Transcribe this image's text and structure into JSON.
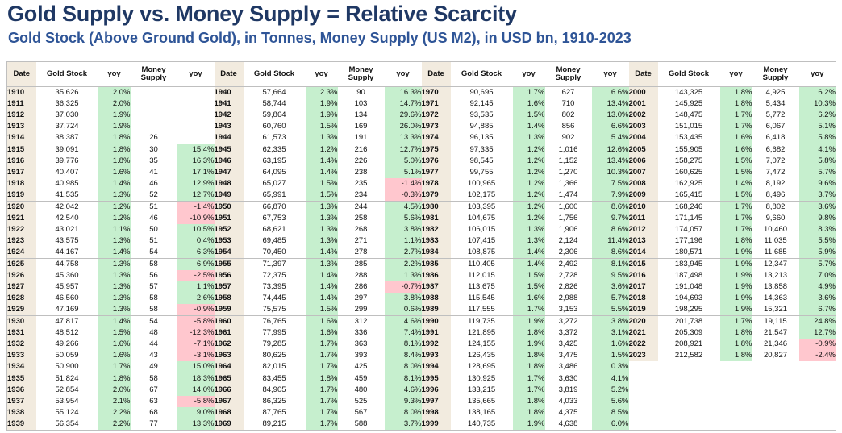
{
  "header": {
    "title": "Gold Supply vs. Money Supply = Relative Scarcity",
    "subtitle": "Gold Stock (Above Ground Gold), in Tonnes, Money Supply (US M2), in USD bn, 1910-2023"
  },
  "columns": [
    "Date",
    "Gold Stock",
    "yoy",
    "Money Supply",
    "yoy"
  ],
  "colors": {
    "date_bg": "#f2ebdf",
    "positive_bg": "#c6efce",
    "negative_bg": "#ffc7ce",
    "title": "#1f3864",
    "subtitle": "#2f5597"
  },
  "blocks": [
    {
      "rows": [
        [
          "1910",
          "35,626",
          "2.0%",
          "",
          ""
        ],
        [
          "1911",
          "36,325",
          "2.0%",
          "",
          ""
        ],
        [
          "1912",
          "37,030",
          "1.9%",
          "",
          ""
        ],
        [
          "1913",
          "37,724",
          "1.9%",
          "",
          ""
        ],
        [
          "1914",
          "38,387",
          "1.8%",
          "26",
          ""
        ],
        [
          "1915",
          "39,091",
          "1.8%",
          "30",
          "15.4%"
        ],
        [
          "1916",
          "39,776",
          "1.8%",
          "35",
          "16.3%"
        ],
        [
          "1917",
          "40,407",
          "1.6%",
          "41",
          "17.1%"
        ],
        [
          "1918",
          "40,985",
          "1.4%",
          "46",
          "12.9%"
        ],
        [
          "1919",
          "41,535",
          "1.3%",
          "52",
          "12.7%"
        ],
        [
          "1920",
          "42,042",
          "1.2%",
          "51",
          "-1.4%"
        ],
        [
          "1921",
          "42,540",
          "1.2%",
          "46",
          "-10.9%"
        ],
        [
          "1922",
          "43,021",
          "1.1%",
          "50",
          "10.5%"
        ],
        [
          "1923",
          "43,575",
          "1.3%",
          "51",
          "0.4%"
        ],
        [
          "1924",
          "44,167",
          "1.4%",
          "54",
          "6.3%"
        ],
        [
          "1925",
          "44,758",
          "1.3%",
          "58",
          "6.9%"
        ],
        [
          "1926",
          "45,360",
          "1.3%",
          "56",
          "-2.5%"
        ],
        [
          "1927",
          "45,957",
          "1.3%",
          "57",
          "1.1%"
        ],
        [
          "1928",
          "46,560",
          "1.3%",
          "58",
          "2.6%"
        ],
        [
          "1929",
          "47,169",
          "1.3%",
          "58",
          "-0.9%"
        ],
        [
          "1930",
          "47,817",
          "1.4%",
          "54",
          "-5.8%"
        ],
        [
          "1931",
          "48,512",
          "1.5%",
          "48",
          "-12.3%"
        ],
        [
          "1932",
          "49,266",
          "1.6%",
          "44",
          "-7.1%"
        ],
        [
          "1933",
          "50,059",
          "1.6%",
          "43",
          "-3.1%"
        ],
        [
          "1934",
          "50,900",
          "1.7%",
          "49",
          "15.0%"
        ],
        [
          "1935",
          "51,824",
          "1.8%",
          "58",
          "18.3%"
        ],
        [
          "1936",
          "52,854",
          "2.0%",
          "67",
          "14.0%"
        ],
        [
          "1937",
          "53,954",
          "2.1%",
          "63",
          "-5.8%"
        ],
        [
          "1938",
          "55,124",
          "2.2%",
          "68",
          "9.0%"
        ],
        [
          "1939",
          "56,354",
          "2.2%",
          "77",
          "13.3%"
        ]
      ]
    },
    {
      "rows": [
        [
          "1940",
          "57,664",
          "2.3%",
          "90",
          "16.3%"
        ],
        [
          "1941",
          "58,744",
          "1.9%",
          "103",
          "14.7%"
        ],
        [
          "1942",
          "59,864",
          "1.9%",
          "134",
          "29.6%"
        ],
        [
          "1943",
          "60,760",
          "1.5%",
          "169",
          "26.0%"
        ],
        [
          "1944",
          "61,573",
          "1.3%",
          "191",
          "13.3%"
        ],
        [
          "1945",
          "62,335",
          "1.2%",
          "216",
          "12.7%"
        ],
        [
          "1946",
          "63,195",
          "1.4%",
          "226",
          "5.0%"
        ],
        [
          "1947",
          "64,095",
          "1.4%",
          "238",
          "5.1%"
        ],
        [
          "1948",
          "65,027",
          "1.5%",
          "235",
          "-1.4%"
        ],
        [
          "1949",
          "65,991",
          "1.5%",
          "234",
          "-0.3%"
        ],
        [
          "1950",
          "66,870",
          "1.3%",
          "244",
          "4.5%"
        ],
        [
          "1951",
          "67,753",
          "1.3%",
          "258",
          "5.6%"
        ],
        [
          "1952",
          "68,621",
          "1.3%",
          "268",
          "3.8%"
        ],
        [
          "1953",
          "69,485",
          "1.3%",
          "271",
          "1.1%"
        ],
        [
          "1954",
          "70,450",
          "1.4%",
          "278",
          "2.7%"
        ],
        [
          "1955",
          "71,397",
          "1.3%",
          "285",
          "2.2%"
        ],
        [
          "1956",
          "72,375",
          "1.4%",
          "288",
          "1.3%"
        ],
        [
          "1957",
          "73,395",
          "1.4%",
          "286",
          "-0.7%"
        ],
        [
          "1958",
          "74,445",
          "1.4%",
          "297",
          "3.8%"
        ],
        [
          "1959",
          "75,575",
          "1.5%",
          "299",
          "0.6%"
        ],
        [
          "1960",
          "76,765",
          "1.6%",
          "312",
          "4.6%"
        ],
        [
          "1961",
          "77,995",
          "1.6%",
          "336",
          "7.4%"
        ],
        [
          "1962",
          "79,285",
          "1.7%",
          "363",
          "8.1%"
        ],
        [
          "1963",
          "80,625",
          "1.7%",
          "393",
          "8.4%"
        ],
        [
          "1964",
          "82,015",
          "1.7%",
          "425",
          "8.0%"
        ],
        [
          "1965",
          "83,455",
          "1.8%",
          "459",
          "8.1%"
        ],
        [
          "1966",
          "84,905",
          "1.7%",
          "480",
          "4.6%"
        ],
        [
          "1967",
          "86,325",
          "1.7%",
          "525",
          "9.3%"
        ],
        [
          "1968",
          "87,765",
          "1.7%",
          "567",
          "8.0%"
        ],
        [
          "1969",
          "89,215",
          "1.7%",
          "588",
          "3.7%"
        ]
      ]
    },
    {
      "rows": [
        [
          "1970",
          "90,695",
          "1.7%",
          "627",
          "6.6%"
        ],
        [
          "1971",
          "92,145",
          "1.6%",
          "710",
          "13.4%"
        ],
        [
          "1972",
          "93,535",
          "1.5%",
          "802",
          "13.0%"
        ],
        [
          "1973",
          "94,885",
          "1.4%",
          "856",
          "6.6%"
        ],
        [
          "1974",
          "96,135",
          "1.3%",
          "902",
          "5.4%"
        ],
        [
          "1975",
          "97,335",
          "1.2%",
          "1,016",
          "12.6%"
        ],
        [
          "1976",
          "98,545",
          "1.2%",
          "1,152",
          "13.4%"
        ],
        [
          "1977",
          "99,755",
          "1.2%",
          "1,270",
          "10.3%"
        ],
        [
          "1978",
          "100,965",
          "1.2%",
          "1,366",
          "7.5%"
        ],
        [
          "1979",
          "102,175",
          "1.2%",
          "1,474",
          "7.9%"
        ],
        [
          "1980",
          "103,395",
          "1.2%",
          "1,600",
          "8.6%"
        ],
        [
          "1981",
          "104,675",
          "1.2%",
          "1,756",
          "9.7%"
        ],
        [
          "1982",
          "106,015",
          "1.3%",
          "1,906",
          "8.6%"
        ],
        [
          "1983",
          "107,415",
          "1.3%",
          "2,124",
          "11.4%"
        ],
        [
          "1984",
          "108,875",
          "1.4%",
          "2,306",
          "8.6%"
        ],
        [
          "1985",
          "110,405",
          "1.4%",
          "2,492",
          "8.1%"
        ],
        [
          "1986",
          "112,015",
          "1.5%",
          "2,728",
          "9.5%"
        ],
        [
          "1987",
          "113,675",
          "1.5%",
          "2,826",
          "3.6%"
        ],
        [
          "1988",
          "115,545",
          "1.6%",
          "2,988",
          "5.7%"
        ],
        [
          "1989",
          "117,555",
          "1.7%",
          "3,153",
          "5.5%"
        ],
        [
          "1990",
          "119,735",
          "1.9%",
          "3,272",
          "3.8%"
        ],
        [
          "1991",
          "121,895",
          "1.8%",
          "3,372",
          "3.1%"
        ],
        [
          "1992",
          "124,155",
          "1.9%",
          "3,425",
          "1.6%"
        ],
        [
          "1993",
          "126,435",
          "1.8%",
          "3,475",
          "1.5%"
        ],
        [
          "1994",
          "128,695",
          "1.8%",
          "3,486",
          "0.3%"
        ],
        [
          "1995",
          "130,925",
          "1.7%",
          "3,630",
          "4.1%"
        ],
        [
          "1996",
          "133,215",
          "1.7%",
          "3,819",
          "5.2%"
        ],
        [
          "1997",
          "135,665",
          "1.8%",
          "4,033",
          "5.6%"
        ],
        [
          "1998",
          "138,165",
          "1.8%",
          "4,375",
          "8.5%"
        ],
        [
          "1999",
          "140,735",
          "1.9%",
          "4,638",
          "6.0%"
        ]
      ]
    },
    {
      "rows": [
        [
          "2000",
          "143,325",
          "1.8%",
          "4,925",
          "6.2%"
        ],
        [
          "2001",
          "145,925",
          "1.8%",
          "5,434",
          "10.3%"
        ],
        [
          "2002",
          "148,475",
          "1.7%",
          "5,772",
          "6.2%"
        ],
        [
          "2003",
          "151,015",
          "1.7%",
          "6,067",
          "5.1%"
        ],
        [
          "2004",
          "153,435",
          "1.6%",
          "6,418",
          "5.8%"
        ],
        [
          "2005",
          "155,905",
          "1.6%",
          "6,682",
          "4.1%"
        ],
        [
          "2006",
          "158,275",
          "1.5%",
          "7,072",
          "5.8%"
        ],
        [
          "2007",
          "160,625",
          "1.5%",
          "7,472",
          "5.7%"
        ],
        [
          "2008",
          "162,925",
          "1.4%",
          "8,192",
          "9.6%"
        ],
        [
          "2009",
          "165,415",
          "1.5%",
          "8,496",
          "3.7%"
        ],
        [
          "2010",
          "168,246",
          "1.7%",
          "8,802",
          "3.6%"
        ],
        [
          "2011",
          "171,145",
          "1.7%",
          "9,660",
          "9.8%"
        ],
        [
          "2012",
          "174,057",
          "1.7%",
          "10,460",
          "8.3%"
        ],
        [
          "2013",
          "177,196",
          "1.8%",
          "11,035",
          "5.5%"
        ],
        [
          "2014",
          "180,571",
          "1.9%",
          "11,685",
          "5.9%"
        ],
        [
          "2015",
          "183,945",
          "1.9%",
          "12,347",
          "5.7%"
        ],
        [
          "2016",
          "187,498",
          "1.9%",
          "13,213",
          "7.0%"
        ],
        [
          "2017",
          "191,048",
          "1.9%",
          "13,858",
          "4.9%"
        ],
        [
          "2018",
          "194,693",
          "1.9%",
          "14,363",
          "3.6%"
        ],
        [
          "2019",
          "198,295",
          "1.9%",
          "15,321",
          "6.7%"
        ],
        [
          "2020",
          "201,738",
          "1.7%",
          "19,115",
          "24.8%"
        ],
        [
          "2021",
          "205,309",
          "1.8%",
          "21,547",
          "12.7%"
        ],
        [
          "2022",
          "208,921",
          "1.8%",
          "21,346",
          "-0.9%"
        ],
        [
          "2023",
          "212,582",
          "1.8%",
          "20,827",
          "-2.4%"
        ],
        [
          "",
          "",
          "",
          "",
          ""
        ],
        [
          "",
          "",
          "",
          "",
          ""
        ],
        [
          "",
          "",
          "",
          "",
          ""
        ],
        [
          "",
          "",
          "",
          "",
          ""
        ],
        [
          "",
          "",
          "",
          "",
          ""
        ],
        [
          "",
          "",
          "",
          "",
          ""
        ]
      ]
    }
  ]
}
